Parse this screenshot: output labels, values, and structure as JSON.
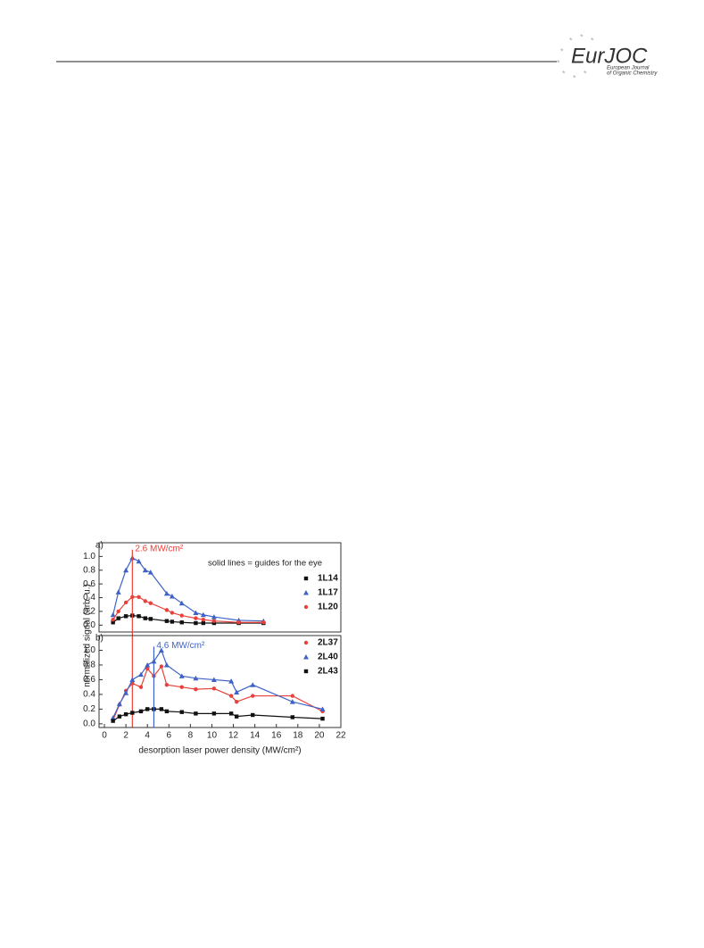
{
  "header": {
    "logo": "EurJOC",
    "journal_line1": "European Journal",
    "journal_line2": "of Organic Chemistry"
  },
  "chart_data": [
    {
      "type": "scatter",
      "panel_label": "a)",
      "annotation": "solid lines = guides for the eye",
      "ylabel": "normalized signal (arb. u.)",
      "vline": {
        "x": 2.6,
        "label": "2.6 MW/cm²",
        "color": "#e8403a"
      },
      "x": [
        0.8,
        1.3,
        2.0,
        2.6,
        3.2,
        3.8,
        4.3,
        5.8,
        6.3,
        7.2,
        8.5,
        9.2,
        10.2,
        12.5,
        14.8
      ],
      "series": [
        {
          "name": "1L14",
          "color": "#111111",
          "marker": "square",
          "values": [
            0.04,
            0.1,
            0.13,
            0.14,
            0.13,
            0.1,
            0.09,
            0.06,
            0.05,
            0.04,
            0.03,
            0.03,
            0.03,
            0.03,
            0.03
          ]
        },
        {
          "name": "1L17",
          "color": "#3f62c8",
          "marker": "triangle",
          "values": [
            0.15,
            0.48,
            0.8,
            0.98,
            0.93,
            0.8,
            0.77,
            0.46,
            0.42,
            0.32,
            0.18,
            0.15,
            0.12,
            0.07,
            0.06
          ]
        },
        {
          "name": "1L20",
          "color": "#e8403a",
          "marker": "circle",
          "values": [
            0.08,
            0.2,
            0.33,
            0.41,
            0.41,
            0.35,
            0.32,
            0.22,
            0.18,
            0.14,
            0.1,
            0.08,
            0.06,
            0.04,
            0.04
          ]
        }
      ],
      "xlim": [
        -0.5,
        22
      ],
      "ylim": [
        -0.1,
        1.2
      ],
      "yticks": [
        {
          "value": 0,
          "label": "0.0"
        },
        {
          "value": 0.2,
          "label": "0.2"
        },
        {
          "value": 0.4,
          "label": "0.4"
        },
        {
          "value": 0.6,
          "label": "0.6"
        },
        {
          "value": 0.8,
          "label": "0.8"
        },
        {
          "value": 1.0,
          "label": "1.0"
        }
      ]
    },
    {
      "type": "scatter",
      "panel_label": "b)",
      "xlabel": "desorption laser power density (MW/cm²)",
      "vline": {
        "x": 4.6,
        "label": "4.6 MW/cm²",
        "color": "#3f62c8"
      },
      "x": [
        0.8,
        1.4,
        2.0,
        2.6,
        3.4,
        4.0,
        4.6,
        5.3,
        5.8,
        7.2,
        8.5,
        10.2,
        11.8,
        12.3,
        13.8,
        17.5,
        20.3
      ],
      "series": [
        {
          "name": "2L37",
          "color": "#e8403a",
          "marker": "circle",
          "values": [
            0.05,
            0.26,
            0.45,
            0.55,
            0.5,
            0.75,
            0.65,
            0.78,
            0.53,
            0.5,
            0.47,
            0.48,
            0.38,
            0.3,
            0.38,
            0.38,
            0.17
          ]
        },
        {
          "name": "2L40",
          "color": "#3f62c8",
          "marker": "triangle",
          "values": [
            0.08,
            0.27,
            0.42,
            0.6,
            0.67,
            0.8,
            0.85,
            1.0,
            0.8,
            0.65,
            0.62,
            0.6,
            0.58,
            0.43,
            0.53,
            0.3,
            0.2
          ]
        },
        {
          "name": "2L43",
          "color": "#111111",
          "marker": "square",
          "values": [
            0.04,
            0.1,
            0.13,
            0.15,
            0.17,
            0.2,
            0.2,
            0.2,
            0.17,
            0.16,
            0.14,
            0.14,
            0.14,
            0.1,
            0.12,
            0.09,
            0.07
          ]
        }
      ],
      "xlim": [
        -0.5,
        22
      ],
      "ylim": [
        -0.05,
        1.2
      ],
      "xticks": [
        0,
        2,
        4,
        6,
        8,
        10,
        12,
        14,
        16,
        18,
        20,
        22
      ],
      "yticks": [
        {
          "value": 0,
          "label": "0.0"
        },
        {
          "value": 0.2,
          "label": "0.2"
        },
        {
          "value": 0.4,
          "label": "0.4"
        },
        {
          "value": 0.6,
          "label": "0.6"
        },
        {
          "value": 0.8,
          "label": "0.8"
        },
        {
          "value": 1.0,
          "label": "1.0"
        }
      ]
    }
  ]
}
